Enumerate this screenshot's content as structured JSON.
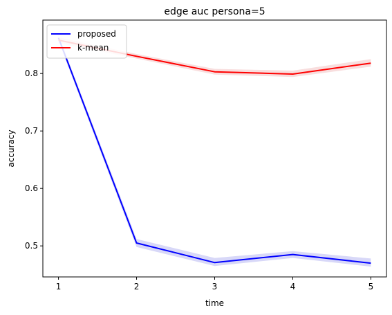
{
  "chart_data": {
    "type": "line",
    "title": "edge auc persona=5",
    "xlabel": "time",
    "ylabel": "accuracy",
    "x": [
      1,
      2,
      3,
      4,
      5
    ],
    "x_ticks": [
      "1",
      "2",
      "3",
      "4",
      "5"
    ],
    "y_ticks": [
      "0.5",
      "0.6",
      "0.7",
      "0.8"
    ],
    "y_tick_values": [
      0.5,
      0.6,
      0.7,
      0.8
    ],
    "xlim": [
      0.8,
      5.2
    ],
    "ylim": [
      0.446,
      0.893
    ],
    "grid": false,
    "legend_position": "top-left",
    "series": [
      {
        "name": "proposed",
        "color": "#0000ff",
        "band_color": "#c8c8f5",
        "values": [
          0.862,
          0.505,
          0.471,
          0.485,
          0.47
        ],
        "lower": [
          0.857,
          0.498,
          0.465,
          0.479,
          0.464
        ],
        "upper": [
          0.867,
          0.512,
          0.479,
          0.491,
          0.478
        ]
      },
      {
        "name": "k-mean",
        "color": "#ff0000",
        "band_color": "#f5d0d0",
        "values": [
          0.858,
          0.83,
          0.803,
          0.799,
          0.818
        ],
        "lower": [
          0.853,
          0.826,
          0.798,
          0.794,
          0.812
        ],
        "upper": [
          0.863,
          0.834,
          0.808,
          0.805,
          0.825
        ]
      }
    ]
  }
}
